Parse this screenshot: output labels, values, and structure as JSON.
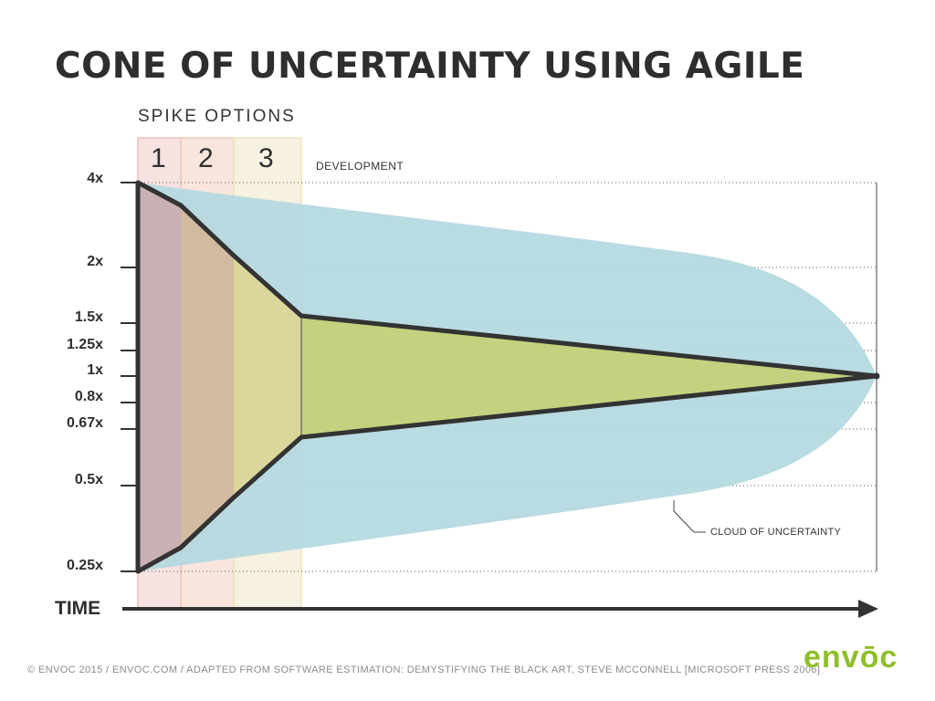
{
  "title": "CONE OF UNCERTAINTY USING AGILE",
  "spike_options_label": "SPIKE OPTIONS",
  "spike_numbers": [
    "1",
    "2",
    "3"
  ],
  "development_label": "DEVELOPMENT",
  "cloud_label": "CLOUD OF UNCERTAINTY",
  "time_label": "TIME",
  "footer": "© ENVOC 2015 / ENVOC.COM / ADAPTED FROM SOFTWARE ESTIMATION: DEMYSTIFYING THE BLACK ART, STEVE MCCONNELL [MICROSOFT PRESS 2006]",
  "logo": "envōc",
  "colors": {
    "cloud": "#b3d8e0",
    "cone_fill": "#c3d27e",
    "line": "#333333",
    "spike_1": "#f7e2e2",
    "spike_2": "#f8e6dd",
    "spike_3": "#f6f1e0",
    "logo": "#8fbf2a"
  },
  "chart_data": {
    "type": "line",
    "title": "CONE OF UNCERTAINTY USING AGILE",
    "xlabel": "TIME",
    "ylabel": "",
    "yscale": "log",
    "yticks": [
      "4x",
      "2x",
      "1.5x",
      "1.25x",
      "1x",
      "0.8x",
      "0.67x",
      "0.5x",
      "0.25x"
    ],
    "ytick_values": [
      4,
      2,
      1.5,
      1.25,
      1,
      0.8,
      0.67,
      0.5,
      0.25
    ],
    "phases": [
      "1",
      "2",
      "3",
      "DEVELOPMENT"
    ],
    "series": [
      {
        "name": "",
        "phase_boundary_values": [
          4,
          3.4,
          2.15,
          1.45,
          1
        ]
      },
      {
        "name": "",
        "phase_boundary_values": [
          0.25,
          0.29,
          0.4,
          0.61,
          1
        ]
      }
    ]
  }
}
